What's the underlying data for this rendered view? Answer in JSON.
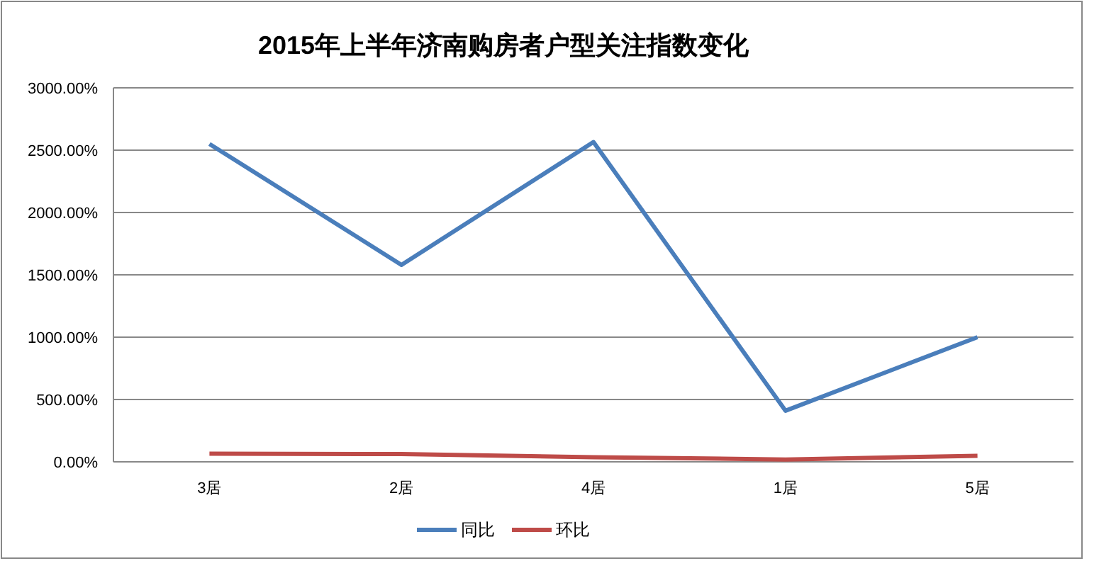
{
  "chart_data": {
    "type": "line",
    "title": "2015年上半年济南购房者户型关注指数变化",
    "categories": [
      "3居",
      "2居",
      "4居",
      "1居",
      "5居"
    ],
    "series": [
      {
        "name": "同比",
        "color": "#4a7ebb",
        "values": [
          2550,
          1580,
          2565,
          410,
          1000
        ]
      },
      {
        "name": "环比",
        "color": "#be4b48",
        "values": [
          65,
          62,
          37,
          19,
          49
        ]
      }
    ],
    "ylim": [
      0,
      3000
    ],
    "yticks": [
      {
        "value": 0,
        "label": "0.00%"
      },
      {
        "value": 500,
        "label": "500.00%"
      },
      {
        "value": 1000,
        "label": "1000.00%"
      },
      {
        "value": 1500,
        "label": "1500.00%"
      },
      {
        "value": 2000,
        "label": "2000.00%"
      },
      {
        "value": 2500,
        "label": "2500.00%"
      },
      {
        "value": 3000,
        "label": "3000.00%"
      }
    ],
    "grid": "y",
    "legend": "bottom"
  }
}
